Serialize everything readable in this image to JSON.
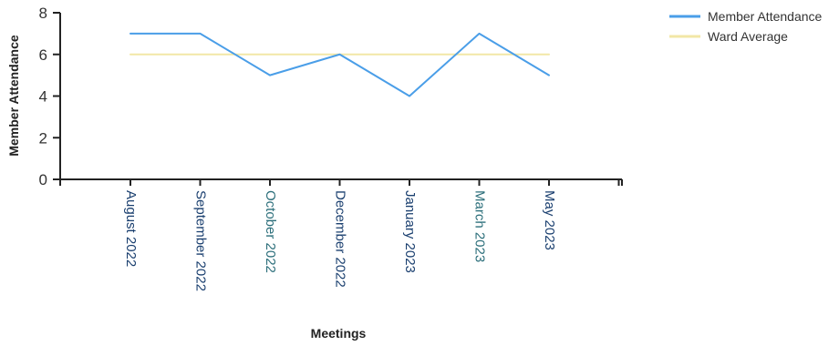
{
  "chart_data": {
    "type": "line",
    "categories": [
      "August 2022",
      "September 2022",
      "October 2022",
      "December 2022",
      "January 2023",
      "March 2023",
      "May 2023"
    ],
    "series": [
      {
        "name": "Member Attendance",
        "values": [
          7,
          7,
          5,
          6,
          4,
          7,
          5
        ],
        "color": "#4a9ee8"
      },
      {
        "name": "Ward Average",
        "values": [
          6,
          6,
          6,
          6,
          6,
          6,
          6
        ],
        "color": "#f2e7a6"
      }
    ],
    "title": "",
    "xlabel": "Meetings",
    "ylabel": "Member Attendance",
    "ylim": [
      0,
      8
    ],
    "yticks": [
      0,
      2,
      4,
      6,
      8
    ],
    "grid": false,
    "legend_position": "top-right"
  }
}
